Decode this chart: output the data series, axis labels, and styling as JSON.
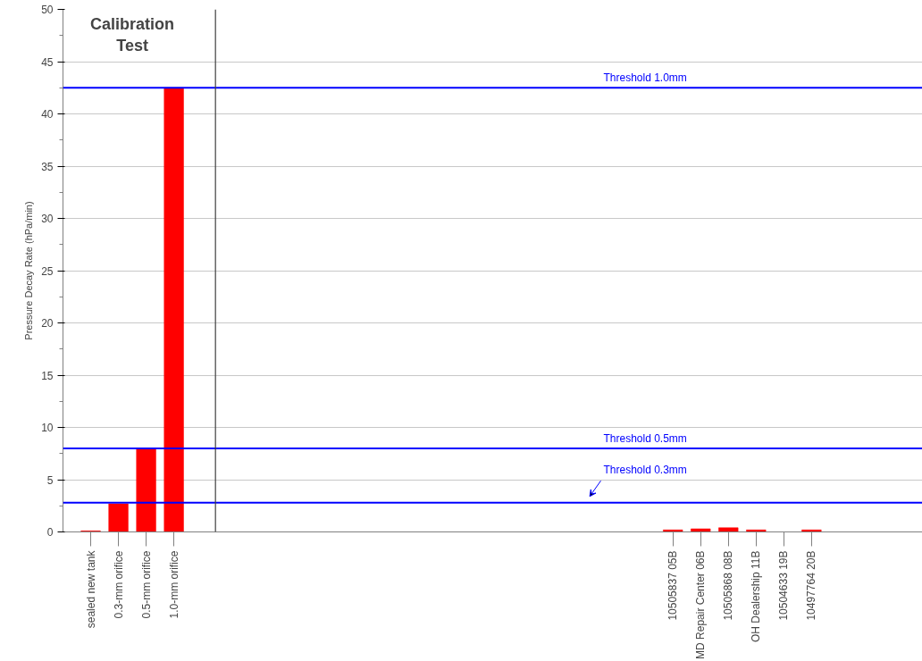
{
  "chart_data": {
    "type": "bar",
    "ylabel": "Pressure Decay Rate (hPa/min)",
    "categories": [
      "sealed new tank",
      "0.3-mm orifice",
      "0.5-mm orifice",
      "1.0-mm orifice",
      null,
      null,
      null,
      null,
      null,
      null,
      null,
      null,
      null,
      null,
      null,
      null,
      null,
      null,
      null,
      null,
      null,
      "10505837 05B",
      "MD Repair Center 06B",
      "10505868 08B",
      "OH Dealership 11B",
      "10504633 19B",
      "10497764 20B"
    ],
    "values": [
      0.1,
      2.7,
      8.0,
      42.5,
      null,
      null,
      null,
      null,
      null,
      null,
      null,
      null,
      null,
      null,
      null,
      null,
      null,
      null,
      null,
      null,
      null,
      0.2,
      0.3,
      0.4,
      0.2,
      0.0,
      0.2
    ],
    "color": "#ff0000",
    "ylim": [
      0,
      50
    ],
    "yticks": [
      0,
      5,
      10,
      15,
      20,
      25,
      30,
      35,
      40,
      45,
      50
    ],
    "grid": "y",
    "ref_lines": [
      {
        "axis": "y",
        "value": 42.5,
        "label": "Threshold 1.0mm",
        "color": "#0000ff"
      },
      {
        "axis": "y",
        "value": 8.0,
        "label": "Threshold 0.5mm",
        "color": "#0000ff"
      },
      {
        "axis": "y",
        "value": 2.8,
        "label": "Threshold 0.3mm",
        "color": "#0000ff"
      }
    ],
    "annotations": [
      "Calibration Test"
    ]
  }
}
